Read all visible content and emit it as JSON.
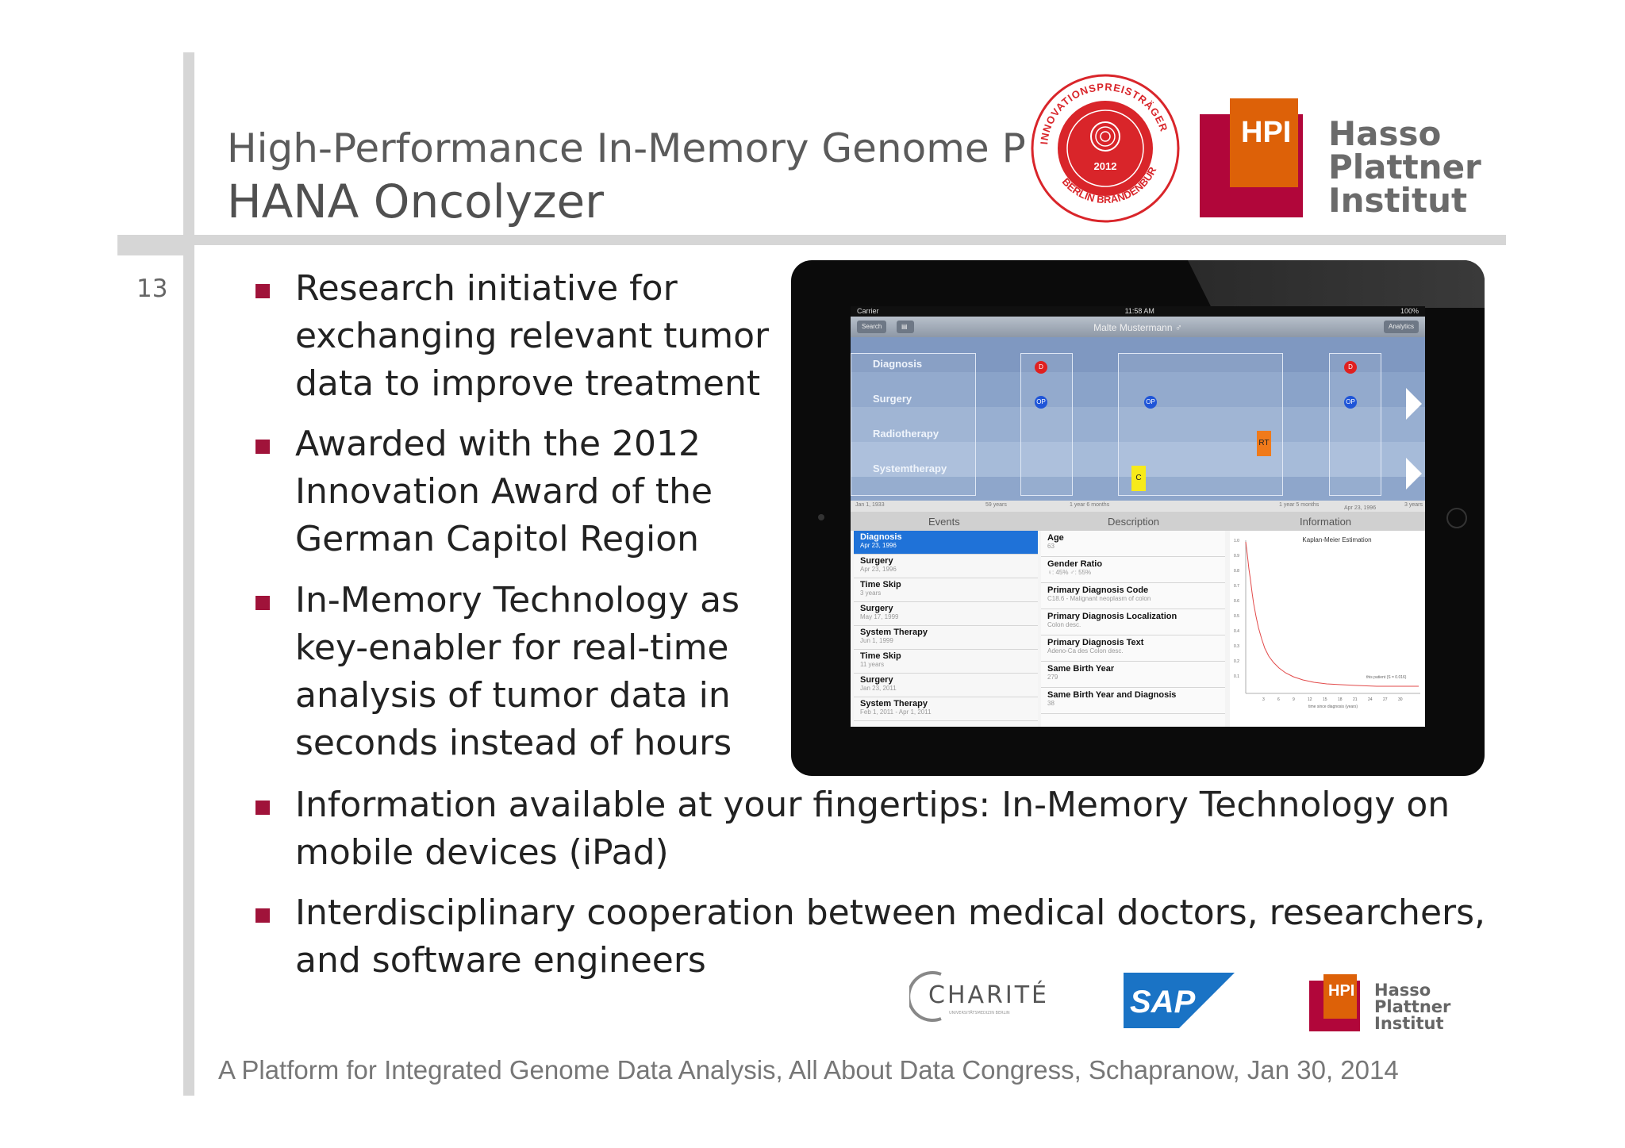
{
  "slide": {
    "number": "13",
    "title_line1": "High-Performance In-Memory Genome Pr",
    "title_line2": "HANA Oncolyzer"
  },
  "award_badge": {
    "text_arc": "INNOVATIONSPREISTRÄGER",
    "text_bottom": "BERLIN BRANDENBURG",
    "year": "2012"
  },
  "hpi_logo": {
    "abbr": "HPI",
    "line1": "Hasso",
    "line2": "Plattner",
    "line3": "Institut"
  },
  "bullets": [
    {
      "lines": [
        "Research initiative for",
        "exchanging relevant tumor",
        "data to improve treatment"
      ]
    },
    {
      "lines": [
        "Awarded with the 2012",
        "Innovation Award of the",
        "German Capitol Region"
      ]
    },
    {
      "lines": [
        "In-Memory Technology as",
        "key-enabler for real-time",
        "analysis of tumor data in",
        "seconds instead of hours"
      ]
    },
    {
      "lines": [
        "Information available at your fingertips: In-Memory Technology on",
        "mobile devices (iPad)"
      ]
    },
    {
      "lines": [
        "Interdisciplinary cooperation between medical doctors, researchers,",
        "and software engineers"
      ]
    }
  ],
  "ipad_app": {
    "status": {
      "carrier": "Carrier",
      "time": "11:58 AM",
      "battery": "100%"
    },
    "nav": {
      "left_button": "Search",
      "title": "Malte Mustermann ♂",
      "right_button": "Analytics"
    },
    "lanes": [
      "Diagnosis",
      "Surgery",
      "Radiotherapy",
      "Systemtherapy"
    ],
    "markers": {
      "diagnosis": "D",
      "surgery": "OP",
      "radiotherapy": "RT",
      "chemo": "C"
    },
    "ticks": [
      "Jan 1, 1933",
      "59 years",
      "1 year 6 months",
      "1 year 5 months",
      "Apr 23, 1996",
      "3 years"
    ],
    "columns": [
      "Events",
      "Description",
      "Information"
    ],
    "events": [
      {
        "title": "Diagnosis",
        "sub": "Apr 23, 1996",
        "selected": true
      },
      {
        "title": "Surgery",
        "sub": "Apr 23, 1996"
      },
      {
        "title": "Time Skip",
        "sub": "3 years"
      },
      {
        "title": "Surgery",
        "sub": "May 17, 1999"
      },
      {
        "title": "System Therapy",
        "sub": "Jun 1, 1999"
      },
      {
        "title": "Time Skip",
        "sub": "11 years"
      },
      {
        "title": "Surgery",
        "sub": "Jan 23, 2011"
      },
      {
        "title": "System Therapy",
        "sub": "Feb 1, 2011 - Apr 1, 2011"
      }
    ],
    "descriptions": [
      {
        "title": "Age",
        "sub": "63"
      },
      {
        "title": "Gender Ratio",
        "sub": "♀: 45%  ♂: 55%"
      },
      {
        "title": "Primary Diagnosis Code",
        "sub": "C18.6 - Malignant neoplasm of colon"
      },
      {
        "title": "Primary Diagnosis Localization",
        "sub": "Colon desc."
      },
      {
        "title": "Primary Diagnosis Text",
        "sub": "Adeno-Ca des Colon desc."
      },
      {
        "title": "Same Birth Year",
        "sub": "279"
      },
      {
        "title": "Same Birth Year and Diagnosis",
        "sub": "38"
      }
    ],
    "km_chart": {
      "title": "Kaplan-Meier Estimation",
      "xlabel": "time since diagnosis (years)",
      "annotation": "this patient (S = 0.016)",
      "y_ticks": [
        "1.0",
        "0.9",
        "0.8",
        "0.7",
        "0.6",
        "0.5",
        "0.4",
        "0.3",
        "0.2",
        "0.1",
        "0"
      ],
      "x_ticks": [
        "3",
        "6",
        "9",
        "12",
        "15",
        "18",
        "21",
        "24",
        "27",
        "30"
      ]
    }
  },
  "partner_logos": {
    "charite": "CHARITÉ",
    "charite_sub": "UNIVERSITÄTSMEDIZIN BERLIN",
    "sap": "SAP",
    "hpi": "HPI"
  },
  "footer": "A Platform for Integrated Genome Data Analysis, All About Data Congress, Schapranow, Jan 30, 2014",
  "colors": {
    "accent": "#a0133a",
    "hpi_red": "#b1063a",
    "hpi_orange": "#dd6108",
    "sap_blue": "#1a73c5"
  }
}
